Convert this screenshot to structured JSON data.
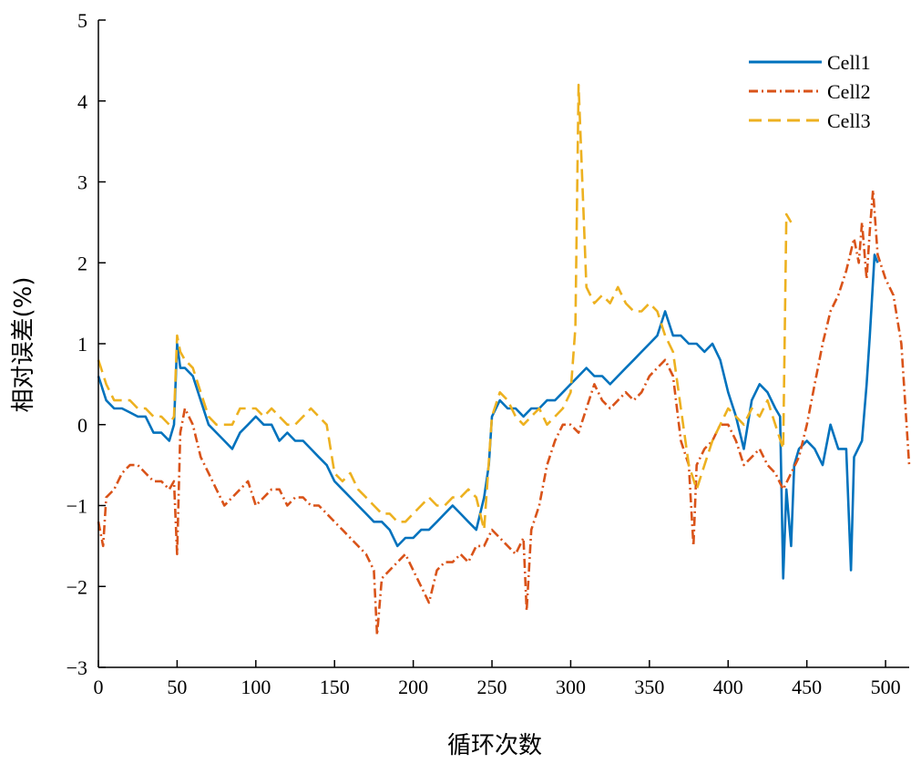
{
  "chart_data": {
    "type": "line",
    "title": "",
    "xlabel": "循环次数",
    "ylabel": "相对误差(%)",
    "xlim": [
      0,
      515
    ],
    "ylim": [
      -3,
      5
    ],
    "xticks": [
      0,
      50,
      100,
      150,
      200,
      250,
      300,
      350,
      400,
      450,
      500
    ],
    "yticks": [
      -3,
      -2,
      -1,
      0,
      1,
      2,
      3,
      4,
      5
    ],
    "ytick_labels": [
      "−3",
      "−2",
      "−1",
      "0",
      "1",
      "2",
      "3",
      "4",
      "5"
    ],
    "grid": false,
    "legend_position": "top-right",
    "series": [
      {
        "name": "Cell1",
        "color": "#0072BD",
        "dash": "solid",
        "x": [
          0,
          5,
          10,
          15,
          20,
          25,
          30,
          35,
          40,
          45,
          48,
          50,
          52,
          55,
          60,
          65,
          70,
          75,
          80,
          85,
          90,
          95,
          100,
          105,
          110,
          115,
          120,
          125,
          130,
          135,
          140,
          145,
          150,
          155,
          160,
          165,
          170,
          175,
          180,
          185,
          190,
          195,
          200,
          205,
          210,
          215,
          220,
          225,
          230,
          235,
          240,
          245,
          248,
          250,
          255,
          260,
          265,
          270,
          275,
          280,
          285,
          290,
          295,
          300,
          305,
          310,
          315,
          320,
          325,
          330,
          335,
          340,
          345,
          350,
          355,
          360,
          365,
          370,
          375,
          380,
          385,
          390,
          395,
          400,
          405,
          410,
          415,
          420,
          425,
          430,
          433,
          435,
          437,
          440,
          442,
          445,
          450,
          455,
          460,
          465,
          470,
          475,
          478,
          480,
          485,
          488,
          490,
          493,
          495
        ],
        "values": [
          0.6,
          0.3,
          0.2,
          0.2,
          0.15,
          0.1,
          0.1,
          -0.1,
          -0.1,
          -0.2,
          0.0,
          1.0,
          0.7,
          0.7,
          0.6,
          0.3,
          0.0,
          -0.1,
          -0.2,
          -0.3,
          -0.1,
          0.0,
          0.1,
          0.0,
          0.0,
          -0.2,
          -0.1,
          -0.2,
          -0.2,
          -0.3,
          -0.4,
          -0.5,
          -0.7,
          -0.8,
          -0.9,
          -1.0,
          -1.1,
          -1.2,
          -1.2,
          -1.3,
          -1.5,
          -1.4,
          -1.4,
          -1.3,
          -1.3,
          -1.2,
          -1.1,
          -1.0,
          -1.1,
          -1.2,
          -1.3,
          -0.9,
          -0.5,
          0.1,
          0.3,
          0.2,
          0.2,
          0.1,
          0.2,
          0.2,
          0.3,
          0.3,
          0.4,
          0.5,
          0.6,
          0.7,
          0.6,
          0.6,
          0.5,
          0.6,
          0.7,
          0.8,
          0.9,
          1.0,
          1.1,
          1.4,
          1.1,
          1.1,
          1.0,
          1.0,
          0.9,
          1.0,
          0.8,
          0.4,
          0.1,
          -0.3,
          0.3,
          0.5,
          0.4,
          0.2,
          0.1,
          -1.9,
          -0.8,
          -1.5,
          -0.5,
          -0.3,
          -0.2,
          -0.3,
          -0.5,
          0.0,
          -0.3,
          -0.3,
          -1.8,
          -0.4,
          -0.2,
          0.5,
          1.1,
          2.1,
          2.0
        ]
      },
      {
        "name": "Cell2",
        "color": "#D95319",
        "dash": "dashdot",
        "x": [
          0,
          3,
          5,
          10,
          15,
          20,
          25,
          30,
          35,
          40,
          45,
          48,
          50,
          52,
          55,
          60,
          65,
          70,
          75,
          80,
          85,
          90,
          95,
          100,
          105,
          110,
          115,
          120,
          125,
          130,
          135,
          140,
          145,
          150,
          155,
          160,
          165,
          170,
          175,
          177,
          180,
          185,
          190,
          195,
          200,
          205,
          210,
          215,
          220,
          225,
          230,
          235,
          240,
          245,
          250,
          255,
          260,
          265,
          270,
          272,
          275,
          280,
          285,
          290,
          295,
          300,
          305,
          310,
          315,
          320,
          325,
          330,
          335,
          340,
          345,
          350,
          355,
          360,
          365,
          370,
          375,
          378,
          380,
          385,
          390,
          395,
          400,
          405,
          410,
          415,
          420,
          425,
          430,
          435,
          440,
          445,
          450,
          455,
          460,
          465,
          470,
          475,
          480,
          483,
          485,
          488,
          490,
          492,
          495,
          500,
          505,
          510,
          515
        ],
        "values": [
          -1.2,
          -1.5,
          -0.9,
          -0.8,
          -0.6,
          -0.5,
          -0.5,
          -0.6,
          -0.7,
          -0.7,
          -0.8,
          -0.7,
          -1.6,
          -0.1,
          0.2,
          0.0,
          -0.4,
          -0.6,
          -0.8,
          -1.0,
          -0.9,
          -0.8,
          -0.7,
          -1.0,
          -0.9,
          -0.8,
          -0.8,
          -1.0,
          -0.9,
          -0.9,
          -1.0,
          -1.0,
          -1.1,
          -1.2,
          -1.3,
          -1.4,
          -1.5,
          -1.6,
          -1.8,
          -2.6,
          -1.9,
          -1.8,
          -1.7,
          -1.6,
          -1.8,
          -2.0,
          -2.2,
          -1.8,
          -1.7,
          -1.7,
          -1.6,
          -1.7,
          -1.5,
          -1.5,
          -1.3,
          -1.4,
          -1.5,
          -1.6,
          -1.4,
          -2.3,
          -1.3,
          -1.0,
          -0.5,
          -0.2,
          0.0,
          0.0,
          -0.1,
          0.2,
          0.5,
          0.3,
          0.2,
          0.3,
          0.4,
          0.3,
          0.4,
          0.6,
          0.7,
          0.8,
          0.6,
          -0.2,
          -0.5,
          -1.5,
          -0.5,
          -0.3,
          -0.2,
          0.0,
          0.0,
          -0.2,
          -0.5,
          -0.4,
          -0.3,
          -0.5,
          -0.6,
          -0.8,
          -0.6,
          -0.4,
          0.0,
          0.5,
          1.0,
          1.4,
          1.6,
          1.9,
          2.3,
          2.0,
          2.5,
          1.8,
          2.4,
          2.9,
          2.1,
          1.8,
          1.6,
          1.0,
          -0.5
        ]
      },
      {
        "name": "Cell3",
        "color": "#EDB120",
        "dash": "dashed",
        "x": [
          0,
          5,
          10,
          15,
          20,
          25,
          30,
          35,
          40,
          45,
          48,
          50,
          52,
          55,
          60,
          65,
          70,
          75,
          80,
          85,
          90,
          95,
          100,
          105,
          110,
          115,
          120,
          125,
          130,
          135,
          140,
          145,
          150,
          155,
          160,
          165,
          170,
          175,
          180,
          185,
          190,
          195,
          200,
          205,
          210,
          215,
          220,
          225,
          230,
          235,
          240,
          245,
          250,
          255,
          260,
          265,
          270,
          275,
          280,
          285,
          290,
          295,
          300,
          303,
          305,
          310,
          315,
          320,
          325,
          330,
          335,
          340,
          345,
          350,
          355,
          360,
          365,
          370,
          375,
          380,
          385,
          390,
          395,
          400,
          405,
          410,
          415,
          420,
          425,
          430,
          435,
          437,
          440
        ],
        "values": [
          0.8,
          0.5,
          0.3,
          0.3,
          0.3,
          0.2,
          0.2,
          0.1,
          0.1,
          0.0,
          0.1,
          1.1,
          0.9,
          0.8,
          0.7,
          0.4,
          0.1,
          0.0,
          0.0,
          0.0,
          0.2,
          0.2,
          0.2,
          0.1,
          0.2,
          0.1,
          0.0,
          0.0,
          0.1,
          0.2,
          0.1,
          0.0,
          -0.6,
          -0.7,
          -0.6,
          -0.8,
          -0.9,
          -1.0,
          -1.1,
          -1.1,
          -1.2,
          -1.2,
          -1.1,
          -1.0,
          -0.9,
          -1.0,
          -1.0,
          -0.9,
          -0.9,
          -0.8,
          -0.9,
          -1.3,
          0.1,
          0.4,
          0.3,
          0.1,
          0.0,
          0.1,
          0.2,
          0.0,
          0.1,
          0.2,
          0.4,
          1.2,
          4.2,
          1.7,
          1.5,
          1.6,
          1.5,
          1.7,
          1.5,
          1.4,
          1.4,
          1.5,
          1.4,
          1.1,
          0.9,
          0.2,
          -0.5,
          -0.8,
          -0.5,
          -0.2,
          0.0,
          0.2,
          0.1,
          0.0,
          0.2,
          0.1,
          0.3,
          0.0,
          -0.3,
          2.6,
          2.5
        ]
      }
    ]
  }
}
